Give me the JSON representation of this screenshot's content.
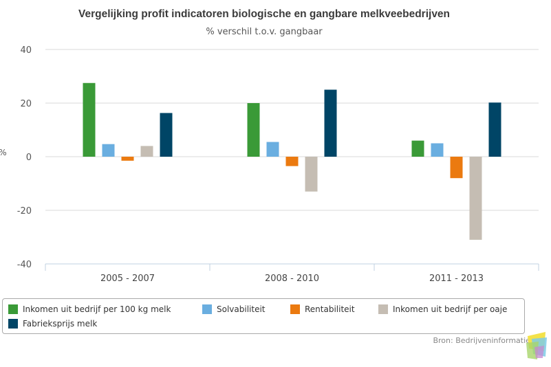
{
  "chart_data": {
    "type": "bar",
    "title": "Vergelijking profit indicatoren biologische en gangbare melkveebedrijven",
    "subtitle": "% verschil t.o.v. gangbaar",
    "ylabel": "%",
    "xlabel": "",
    "ylim": [
      -40,
      40
    ],
    "yticks": [
      40,
      20,
      0,
      -20,
      -40
    ],
    "grid": true,
    "legend_position": "bottom",
    "categories": [
      "2005 - 2007",
      "2008 - 2010",
      "2011 - 2013"
    ],
    "series": [
      {
        "name": "Inkomen uit bedrijf per 100 kg melk",
        "color": "#3a9a37",
        "values": [
          27.5,
          20,
          6
        ]
      },
      {
        "name": "Solvabiliteit",
        "color": "#6aaee0",
        "values": [
          4.7,
          5.5,
          5
        ]
      },
      {
        "name": "Rentabiliteit",
        "color": "#eb7a10",
        "values": [
          -1.5,
          -3.5,
          -8
        ]
      },
      {
        "name": "Inkomen uit bedrijf per oaje",
        "color": "#c5bdb3",
        "values": [
          4,
          -13,
          -31
        ]
      },
      {
        "name": "Fabrieksprijs melk",
        "color": "#004566",
        "values": [
          16.3,
          25,
          20.2
        ]
      }
    ]
  },
  "credits": "Bron: Bedrijveninformatienet",
  "logo_name": "lei-logo"
}
